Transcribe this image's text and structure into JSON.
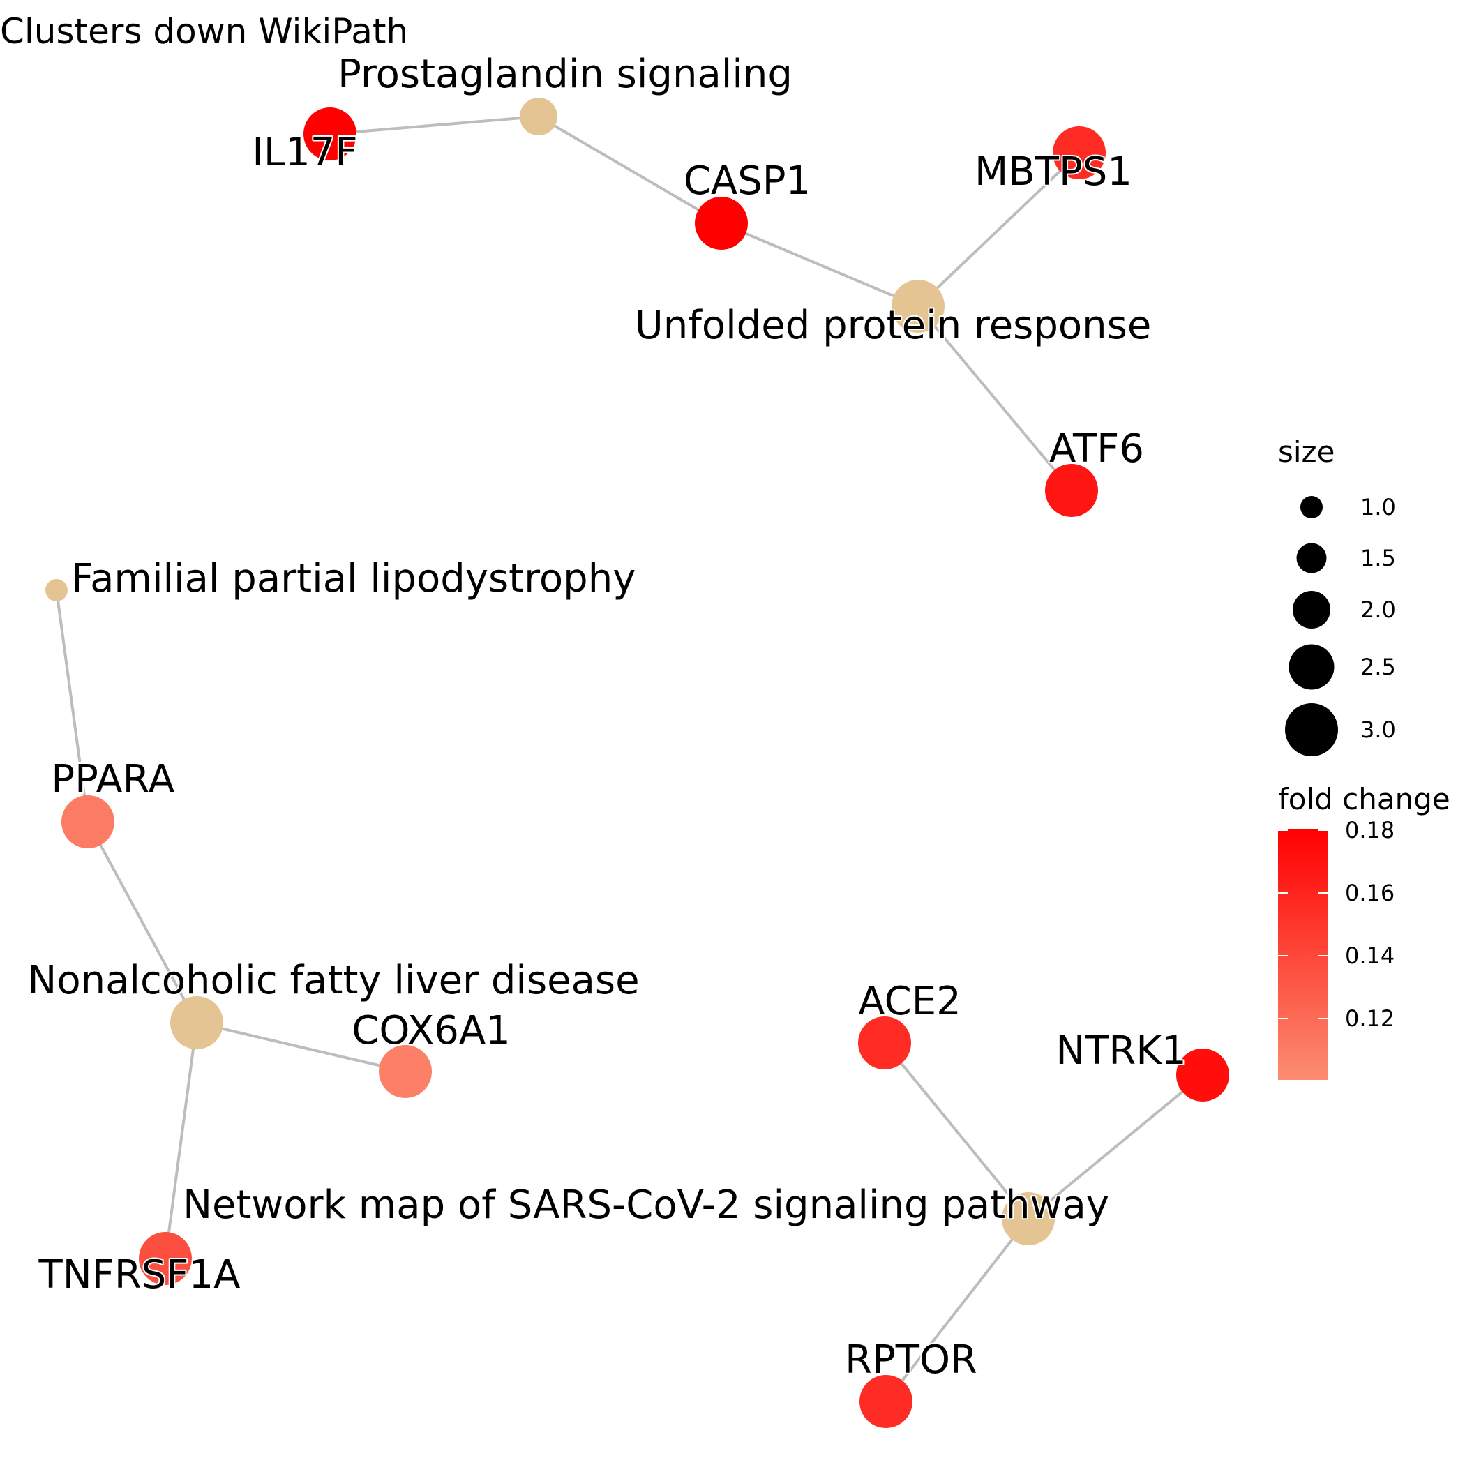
{
  "title": "Clusters down WikiPath",
  "colors": {
    "pathway_node": "#E5C494",
    "edge": "#BDBDBD",
    "fold_change_low": "#FC8D72",
    "fold_change_high": "#FF0000"
  },
  "nodes": [
    {
      "id": "prostaglandin",
      "label": "Prostaglandin signaling",
      "kind": "pathway",
      "size": 2
    },
    {
      "id": "il17f",
      "label": "IL17F",
      "kind": "gene",
      "fold_change": 0.183
    },
    {
      "id": "casp1",
      "label": "CASP1",
      "kind": "gene",
      "fold_change": 0.183
    },
    {
      "id": "mbtps1",
      "label": "MBTPS1",
      "kind": "gene",
      "fold_change": 0.155
    },
    {
      "id": "upr",
      "label": "Unfolded protein response",
      "kind": "pathway",
      "size": 3
    },
    {
      "id": "atf6",
      "label": "ATF6",
      "kind": "gene",
      "fold_change": 0.168
    },
    {
      "id": "fpl",
      "label": "Familial partial lipodystrophy",
      "kind": "pathway",
      "size": 1
    },
    {
      "id": "ppara",
      "label": "PPARA",
      "kind": "gene",
      "fold_change": 0.11
    },
    {
      "id": "nafld",
      "label": "Nonalcoholic fatty liver disease",
      "kind": "pathway",
      "size": 3
    },
    {
      "id": "cox6a1",
      "label": "COX6A1",
      "kind": "gene",
      "fold_change": 0.108
    },
    {
      "id": "tnfrsf1a",
      "label": "TNFRSF1A",
      "kind": "gene",
      "fold_change": 0.135
    },
    {
      "id": "ace2",
      "label": "ACE2",
      "kind": "gene",
      "fold_change": 0.155
    },
    {
      "id": "ntrk1",
      "label": "NTRK1",
      "kind": "gene",
      "fold_change": 0.172
    },
    {
      "id": "sars",
      "label": "Network map of SARS-CoV-2 signaling pathway",
      "kind": "pathway",
      "size": 3
    },
    {
      "id": "rptor",
      "label": "RPTOR",
      "kind": "gene",
      "fold_change": 0.155
    }
  ],
  "edges": [
    [
      "prostaglandin",
      "il17f"
    ],
    [
      "prostaglandin",
      "casp1"
    ],
    [
      "upr",
      "casp1"
    ],
    [
      "upr",
      "mbtps1"
    ],
    [
      "upr",
      "atf6"
    ],
    [
      "fpl",
      "ppara"
    ],
    [
      "nafld",
      "ppara"
    ],
    [
      "nafld",
      "cox6a1"
    ],
    [
      "nafld",
      "tnfrsf1a"
    ],
    [
      "sars",
      "ace2"
    ],
    [
      "sars",
      "ntrk1"
    ],
    [
      "sars",
      "rptor"
    ]
  ],
  "legend": {
    "size_title": "size",
    "size_levels": [
      "1.0",
      "1.5",
      "2.0",
      "2.5",
      "3.0"
    ],
    "color_title": "fold change",
    "color_ticks": [
      "0.18",
      "0.16",
      "0.14",
      "0.12"
    ],
    "color_range": [
      0.1,
      0.18
    ]
  }
}
